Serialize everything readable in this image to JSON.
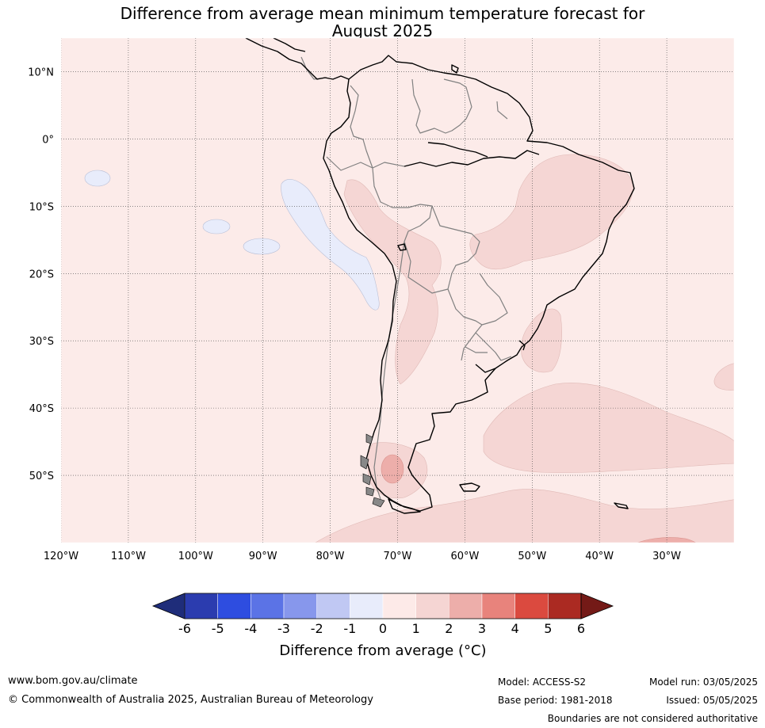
{
  "title_line1": "Difference from average mean minimum temperature forecast for",
  "title_line2": "August 2025",
  "map": {
    "projection": "equirectangular",
    "lon_range": [
      -120,
      -20
    ],
    "lat_range": [
      -60,
      15
    ],
    "background_anomaly_bin": "0 to 1",
    "lat_ticks": [
      {
        "value": 10,
        "label": "10°N"
      },
      {
        "value": 0,
        "label": "0°"
      },
      {
        "value": -10,
        "label": "10°S"
      },
      {
        "value": -20,
        "label": "20°S"
      },
      {
        "value": -30,
        "label": "30°S"
      },
      {
        "value": -40,
        "label": "40°S"
      },
      {
        "value": -50,
        "label": "50°S"
      }
    ],
    "lon_ticks": [
      {
        "value": -120,
        "label": "120°W"
      },
      {
        "value": -110,
        "label": "110°W"
      },
      {
        "value": -100,
        "label": "100°W"
      },
      {
        "value": -90,
        "label": "90°W"
      },
      {
        "value": -80,
        "label": "80°W"
      },
      {
        "value": -70,
        "label": "70°W"
      },
      {
        "value": -60,
        "label": "60°W"
      },
      {
        "value": -50,
        "label": "50°W"
      },
      {
        "value": -40,
        "label": "40°W"
      },
      {
        "value": -30,
        "label": "30°W"
      }
    ],
    "gridlines": true
  },
  "colorbar": {
    "title": "Difference from average (°C)",
    "boundaries": [
      "-6",
      "-5",
      "-4",
      "-3",
      "-2",
      "-1",
      "0",
      "1",
      "2",
      "3",
      "4",
      "5",
      "6"
    ],
    "colors": [
      "#2b3caf",
      "#2e4de0",
      "#5b73e6",
      "#8797ec",
      "#c0c8f3",
      "#e8ecfb",
      "#fdeae8",
      "#f5d5d3",
      "#edaeaa",
      "#e8837c",
      "#db4a3f",
      "#ab2a22"
    ],
    "extend_low_color": "#1f2d7a",
    "extend_high_color": "#741a17"
  },
  "footer": {
    "website": "www.bom.gov.au/climate",
    "copyright": "© Commonwealth of Australia 2025, Australian Bureau of Meteorology",
    "model": "Model: ACCESS-S2",
    "base_period": "Base period: 1981-2018",
    "model_run": "Model run: 03/05/2025",
    "issued": "Issued: 05/05/2025",
    "disclaimer": "Boundaries are not considered authoritative"
  }
}
